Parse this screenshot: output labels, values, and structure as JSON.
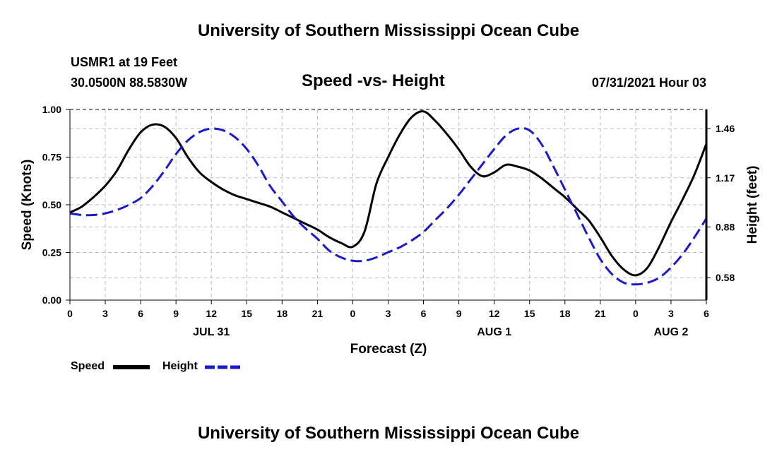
{
  "header": {
    "title_top": "University of Southern Mississippi Ocean Cube",
    "station": "USMR1 at 19 Feet",
    "location": "30.0500N  88.5830W",
    "date": "07/31/2021 Hour 03",
    "title_bottom": "University of Southern Mississippi Ocean Cube"
  },
  "legend": {
    "speed_label": "Speed",
    "height_label": "Height"
  },
  "colors": {
    "speed": "#000000",
    "height": "#1a1acc",
    "grid": "#bdbdbd"
  },
  "chart_data": {
    "type": "line",
    "title": "Speed -vs- Height",
    "xlabel": "Forecast (Z)",
    "ylabel": "Speed (Knots)",
    "y2label": "Height (feet)",
    "x_range": [
      0,
      54
    ],
    "x_ticks": [
      0,
      3,
      6,
      9,
      12,
      15,
      18,
      21,
      24,
      27,
      30,
      33,
      36,
      39,
      42,
      45,
      48,
      51,
      54
    ],
    "x_tick_labels": [
      "0",
      "3",
      "6",
      "9",
      "12",
      "15",
      "18",
      "21",
      "0",
      "3",
      "6",
      "9",
      "12",
      "15",
      "18",
      "21",
      "0",
      "3",
      "6"
    ],
    "day_labels": [
      {
        "x": 12,
        "label": "JUL 31"
      },
      {
        "x": 36,
        "label": "AUG 1"
      },
      {
        "x": 51,
        "label": "AUG 2"
      }
    ],
    "ylim": [
      0,
      1.0
    ],
    "y_ticks": [
      0,
      0.25,
      0.5,
      0.75,
      1.0
    ],
    "y_tick_labels": [
      "0.00",
      "0.25",
      "0.50",
      "0.75",
      "1.00"
    ],
    "y2lim": [
      0.4475,
      1.5735
    ],
    "y2_ticks": [
      0.58,
      0.88,
      1.17,
      1.46
    ],
    "y2_tick_labels": [
      "0.58",
      "0.88",
      "1.17",
      "1.46"
    ],
    "grid": true,
    "series": [
      {
        "name": "Speed",
        "axis": "left",
        "style": "solid",
        "x": [
          0,
          1,
          2,
          3,
          4,
          5,
          6,
          7,
          8,
          9,
          10,
          11,
          12,
          13,
          14,
          15,
          16,
          17,
          18,
          19,
          20,
          21,
          22,
          23,
          24,
          25,
          26,
          27,
          28,
          29,
          30,
          31,
          32,
          33,
          34,
          35,
          36,
          37,
          38,
          39,
          40,
          41,
          42,
          43,
          44,
          45,
          46,
          47,
          48,
          49,
          50,
          51,
          52,
          53,
          54
        ],
        "y": [
          0.46,
          0.49,
          0.54,
          0.6,
          0.68,
          0.79,
          0.88,
          0.92,
          0.91,
          0.85,
          0.75,
          0.67,
          0.62,
          0.58,
          0.55,
          0.53,
          0.51,
          0.49,
          0.46,
          0.43,
          0.4,
          0.37,
          0.33,
          0.3,
          0.28,
          0.36,
          0.61,
          0.75,
          0.87,
          0.96,
          0.99,
          0.94,
          0.87,
          0.79,
          0.7,
          0.65,
          0.67,
          0.71,
          0.7,
          0.68,
          0.64,
          0.59,
          0.54,
          0.48,
          0.42,
          0.33,
          0.23,
          0.16,
          0.13,
          0.17,
          0.28,
          0.41,
          0.53,
          0.66,
          0.82
        ]
      },
      {
        "name": "Height",
        "axis": "right",
        "style": "dashed",
        "x": [
          0,
          1,
          2,
          3,
          4,
          5,
          6,
          7,
          8,
          9,
          10,
          11,
          12,
          13,
          14,
          15,
          16,
          17,
          18,
          19,
          20,
          21,
          22,
          23,
          24,
          25,
          26,
          27,
          28,
          29,
          30,
          31,
          32,
          33,
          34,
          35,
          36,
          37,
          38,
          39,
          40,
          41,
          42,
          43,
          44,
          45,
          46,
          47,
          48,
          49,
          50,
          51,
          52,
          53,
          54
        ],
        "y": [
          0.96,
          0.95,
          0.95,
          0.96,
          0.98,
          1.01,
          1.05,
          1.12,
          1.21,
          1.31,
          1.39,
          1.44,
          1.46,
          1.45,
          1.41,
          1.34,
          1.24,
          1.12,
          1.03,
          0.94,
          0.87,
          0.81,
          0.74,
          0.7,
          0.68,
          0.68,
          0.7,
          0.73,
          0.76,
          0.8,
          0.85,
          0.92,
          0.99,
          1.07,
          1.16,
          1.25,
          1.34,
          1.42,
          1.46,
          1.45,
          1.37,
          1.24,
          1.1,
          0.96,
          0.82,
          0.69,
          0.6,
          0.55,
          0.54,
          0.55,
          0.58,
          0.64,
          0.72,
          0.82,
          0.93
        ]
      }
    ]
  }
}
